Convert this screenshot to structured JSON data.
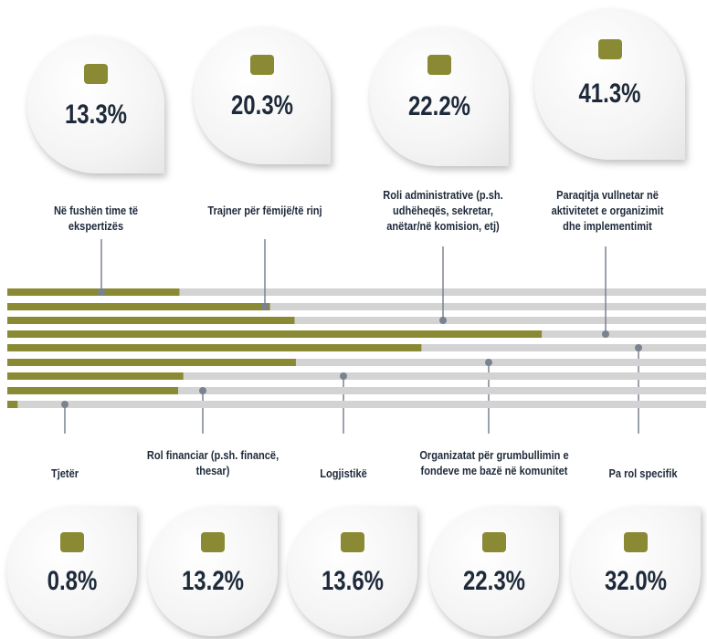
{
  "chart_data": {
    "type": "bar",
    "categories": [
      "Në fushën time të ekspertizës",
      "Trajner për fëmijë/të rinj",
      "Roli administrative (p.sh. udhëheqës, sekretar, anëtar/në komision, etj)",
      "Paraqitja vullnetar në aktivitetet e organizimit dhe implementimit",
      "Pa rol specifik",
      "Organizatat për grumbullimin e fondeve me bazë në komunitet",
      "Logjistikë",
      "Rol financiar (p.sh. financë, thesar)",
      "Tjetër"
    ],
    "values": [
      13.3,
      20.3,
      22.2,
      41.3,
      32.0,
      22.3,
      13.6,
      13.2,
      0.8
    ],
    "value_labels": [
      "13.3%",
      "20.3%",
      "22.2%",
      "41.3%",
      "32.0%",
      "22.3%",
      "13.6%",
      "13.2%",
      "0.8%"
    ],
    "color": "#8a8a35",
    "xlim": [
      0,
      54
    ]
  }
}
